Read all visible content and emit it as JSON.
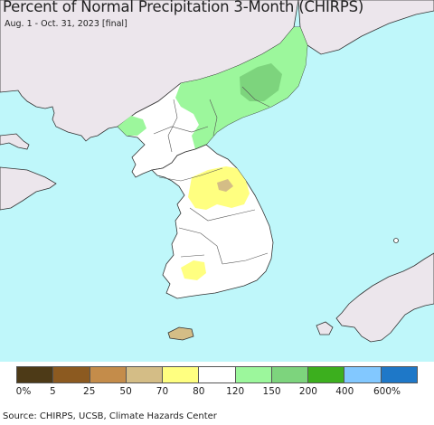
{
  "title": "Percent of Normal Precipitation 3-Month (CHIRPS)",
  "subtitle": "Aug. 1 - Oct. 31, 2023 [final]",
  "source": "Source: CHIRPS, UCSB, Climate Hazards Center",
  "colors": {
    "ocean": "#bff7fa",
    "foreign_land": "#ece6ec",
    "neutral_land": "#ffffff"
  },
  "legend": {
    "swatches": [
      "#4d3a17",
      "#8c5a20",
      "#c48c4a",
      "#d4bd86",
      "#ffff80",
      "#ffffff",
      "#9cf79c",
      "#7dd47d",
      "#3caf1e",
      "#82c8ff",
      "#1e78c8"
    ],
    "labels": [
      "0%",
      "5",
      "25",
      "50",
      "70",
      "80",
      "120",
      "150",
      "200",
      "400",
      "600%"
    ]
  }
}
